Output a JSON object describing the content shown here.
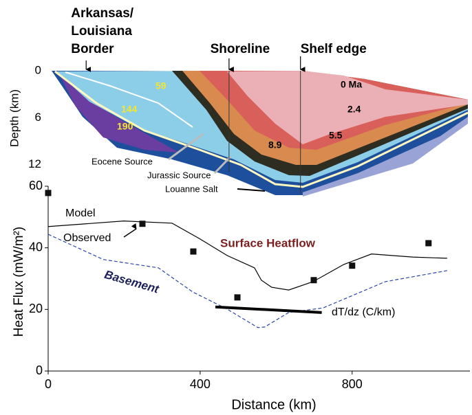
{
  "chart_data": [
    {
      "type": "cross-section",
      "ylabel": "Depth (km)",
      "ylim": [
        0,
        13
      ],
      "yticks": [
        0,
        6,
        12
      ],
      "xlim": [
        0,
        1110
      ],
      "boundaries": [
        {
          "label": [
            "Arkansas/",
            "Louisiana",
            "Border"
          ],
          "x": 100
        },
        {
          "label": [
            "Shoreline"
          ],
          "x": 476
        },
        {
          "label": [
            "Shelf edge"
          ],
          "x": 664
        }
      ],
      "annotations": [
        "0 Ma",
        "2.4",
        "5.5",
        "8.9",
        "59",
        "144",
        "190",
        "Eocene Source",
        "Jurassic Source",
        "Louanne Salt"
      ]
    },
    {
      "type": "line",
      "xlabel": "Distance (km)",
      "ylabel": "Heat Flux (mW/m²)",
      "annotation": "Surface Heatflow",
      "xlim": [
        0,
        1110
      ],
      "xticks": [
        0,
        400,
        800
      ],
      "ylim": [
        0,
        60
      ],
      "yticks": [
        0,
        20,
        40,
        60
      ],
      "series": [
        {
          "name": "Model",
          "type": "line",
          "color": "#000000",
          "x": [
            0,
            199,
            326,
            398,
            471,
            543,
            561,
            588,
            633,
            697,
            778,
            851,
            959,
            1050
          ],
          "values": [
            46.9,
            48.7,
            48,
            43,
            37.5,
            33.5,
            29.5,
            27.2,
            26.3,
            29,
            34.6,
            38,
            37,
            36.6
          ]
        },
        {
          "name": "Observed",
          "type": "scatter",
          "color": "#111111",
          "x": [
            0,
            248,
            382,
            498,
            699,
            800,
            1001
          ],
          "values": [
            57.8,
            47.8,
            38.8,
            23.9,
            29.5,
            34.2,
            41.5
          ]
        },
        {
          "name": "Basement",
          "type": "line",
          "color": "#2b44a8",
          "dashed": true,
          "x": [
            0,
            145,
            290,
            380,
            471,
            552,
            570,
            633,
            724,
            887,
            1050
          ],
          "values": [
            44.4,
            36.2,
            33.5,
            25.7,
            20.1,
            14.1,
            14.3,
            19,
            20.5,
            29,
            32.6
          ]
        },
        {
          "name": "dT/dz (C/km)",
          "type": "line",
          "color": "#000000",
          "line_width": 4,
          "x": [
            440,
            720
          ],
          "values": [
            20.8,
            19
          ]
        }
      ]
    }
  ]
}
